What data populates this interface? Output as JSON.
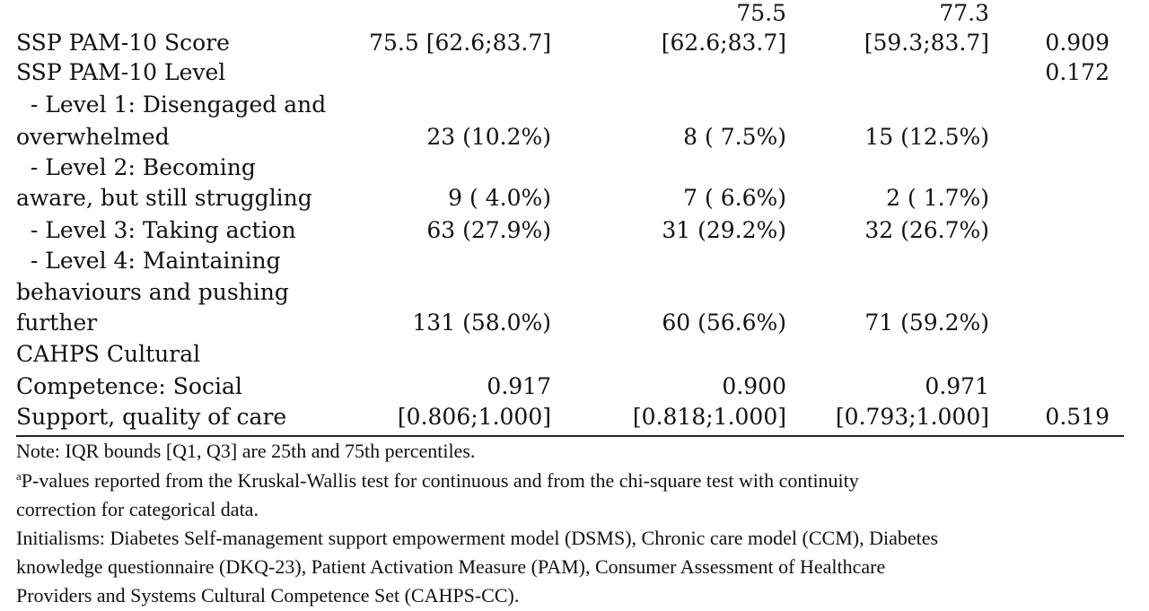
{
  "table": {
    "rows": [
      {
        "label": "",
        "c1": "",
        "c2": "75.5",
        "c3": "77.3",
        "p": ""
      },
      {
        "label": "SSP PAM-10 Score",
        "c1": "75.5 [62.6;83.7]",
        "c2": "[62.6;83.7]",
        "c3": "[59.3;83.7]",
        "p": "0.909"
      },
      {
        "label": "SSP PAM-10 Level",
        "c1": "",
        "c2": "",
        "c3": "",
        "p": "0.172"
      },
      {
        "label": "  - Level 1: Disengaged and",
        "c1": "",
        "c2": "",
        "c3": "",
        "p": ""
      },
      {
        "label": "overwhelmed",
        "c1": "23 (10.2%)",
        "c2": "8 ( 7.5%)",
        "c3": "15 (12.5%)",
        "p": ""
      },
      {
        "label": "  - Level 2: Becoming",
        "c1": "",
        "c2": "",
        "c3": "",
        "p": ""
      },
      {
        "label": "aware, but still struggling",
        "c1": "9 ( 4.0%)",
        "c2": "7 ( 6.6%)",
        "c3": "2 ( 1.7%)",
        "p": ""
      },
      {
        "label": "  - Level 3: Taking action",
        "c1": "63 (27.9%)",
        "c2": "31 (29.2%)",
        "c3": "32 (26.7%)",
        "p": ""
      },
      {
        "label": "  - Level 4: Maintaining",
        "c1": "",
        "c2": "",
        "c3": "",
        "p": ""
      },
      {
        "label": "behaviours and pushing",
        "c1": "",
        "c2": "",
        "c3": "",
        "p": ""
      },
      {
        "label": "further",
        "c1": "131 (58.0%)",
        "c2": "60 (56.6%)",
        "c3": "71 (59.2%)",
        "p": ""
      },
      {
        "label": "CAHPS Cultural",
        "c1": "",
        "c2": "",
        "c3": "",
        "p": ""
      },
      {
        "label": "Competence: Social",
        "c1": "0.917",
        "c2": "0.900",
        "c3": "0.971",
        "p": ""
      },
      {
        "label": "Support, quality of care",
        "c1": "[0.806;1.000]",
        "c2": "[0.818;1.000]",
        "c3": "[0.793;1.000]",
        "p": "0.519"
      }
    ]
  },
  "notes": {
    "iqr": "Note: IQR bounds [Q1, Q3] are 25th and 75th percentiles.",
    "pvalue_marker": "a",
    "pvalue_line1": "P-values reported from the Kruskal-Wallis test for continuous and from the chi-square test with continuity",
    "pvalue_line2": "correction for categorical data.",
    "initialisms_line1": "Initialisms: Diabetes Self-management support empowerment model (DSMS), Chronic care model (CCM), Diabetes",
    "initialisms_line2": "knowledge questionnaire (DKQ-23), Patient Activation Measure (PAM), Consumer Assessment of Healthcare",
    "initialisms_line3": "Providers and Systems Cultural Competence Set (CAHPS-CC)."
  }
}
